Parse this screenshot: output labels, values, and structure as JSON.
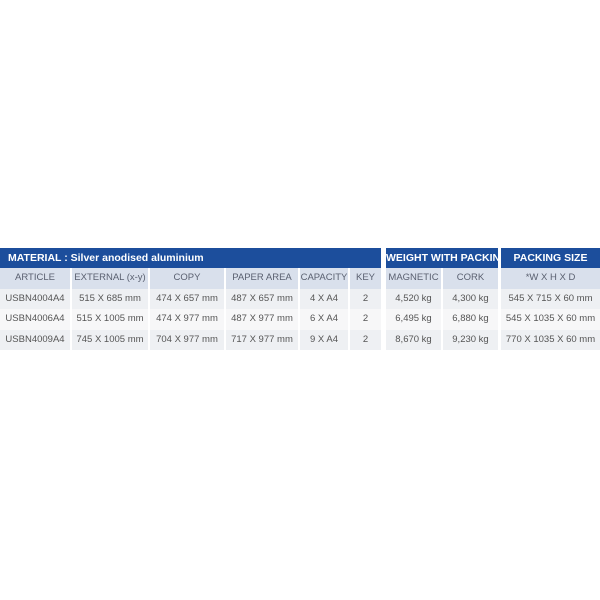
{
  "material_table": {
    "title": "MATERIAL : Silver anodised aluminium",
    "headers": [
      "ARTICLE",
      "EXTERNAL (x-y)",
      "COPY",
      "PAPER AREA",
      "CAPACITY",
      "KEY"
    ],
    "rows": [
      [
        "USBN4004A4",
        "515 X 685 mm",
        "474 X 657 mm",
        "487 X 657 mm",
        "4 X A4",
        "2"
      ],
      [
        "USBN4006A4",
        "515 X 1005 mm",
        "474 X 977 mm",
        "487 X 977 mm",
        "6 X A4",
        "2"
      ],
      [
        "USBN4009A4",
        "745 X 1005 mm",
        "704 X 977 mm",
        "717 X 977 mm",
        "9 X A4",
        "2"
      ]
    ]
  },
  "weight_table": {
    "title": "WEIGHT WITH PACKING",
    "headers": [
      "MAGNETIC",
      "CORK"
    ],
    "rows": [
      [
        "4,520 kg",
        "4,300 kg"
      ],
      [
        "6,495 kg",
        "6,880 kg"
      ],
      [
        "8,670 kg",
        "9,230 kg"
      ]
    ]
  },
  "packing_table": {
    "title": "PACKING SIZE",
    "headers": [
      "*W X H X D"
    ],
    "rows": [
      [
        "545 X 715 X 60 mm"
      ],
      [
        "545 X 1035 X 60 mm"
      ],
      [
        "770 X 1035 X 60 mm"
      ]
    ]
  },
  "colors": {
    "header": "#1c4e9c",
    "subheader": "#d9e0ec",
    "row": "#eef0f3"
  }
}
